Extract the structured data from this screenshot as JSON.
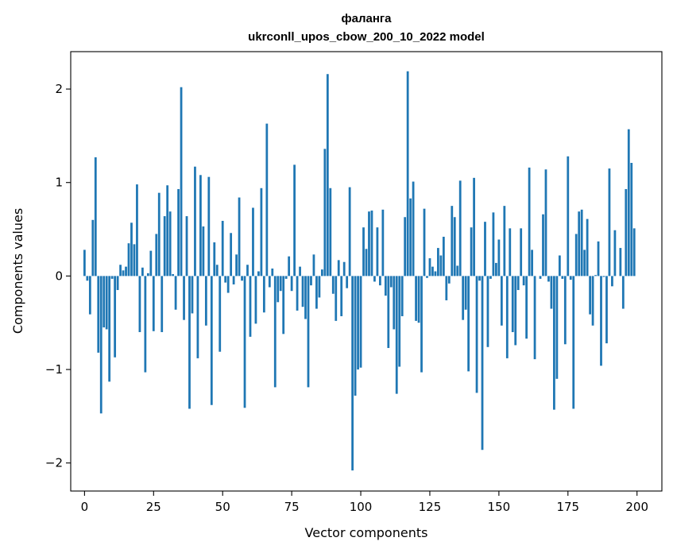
{
  "chart_data": {
    "type": "bar",
    "title": "фаланга",
    "subtitle": "ukrconll_upos_cbow_200_10_2022 model",
    "xlabel": "Vector components",
    "ylabel": "Components values",
    "xlim": [
      -5,
      209
    ],
    "ylim": [
      -2.3,
      2.4
    ],
    "xticks": [
      0,
      25,
      50,
      75,
      100,
      125,
      150,
      175,
      200
    ],
    "yticks": [
      -2,
      -1,
      0,
      1,
      2
    ],
    "xtick_labels": [
      "0",
      "25",
      "50",
      "75",
      "100",
      "125",
      "150",
      "175",
      "200"
    ],
    "ytick_labels": [
      "−2",
      "−1",
      "0",
      "1",
      "2"
    ],
    "grid": false,
    "bar_color": "#1f77b4",
    "x": [
      0,
      1,
      2,
      3,
      4,
      5,
      6,
      7,
      8,
      9,
      10,
      11,
      12,
      13,
      14,
      15,
      16,
      17,
      18,
      19,
      20,
      21,
      22,
      23,
      24,
      25,
      26,
      27,
      28,
      29,
      30,
      31,
      32,
      33,
      34,
      35,
      36,
      37,
      38,
      39,
      40,
      41,
      42,
      43,
      44,
      45,
      46,
      47,
      48,
      49,
      50,
      51,
      52,
      53,
      54,
      55,
      56,
      57,
      58,
      59,
      60,
      61,
      62,
      63,
      64,
      65,
      66,
      67,
      68,
      69,
      70,
      71,
      72,
      73,
      74,
      75,
      76,
      77,
      78,
      79,
      80,
      81,
      82,
      83,
      84,
      85,
      86,
      87,
      88,
      89,
      90,
      91,
      92,
      93,
      94,
      95,
      96,
      97,
      98,
      99,
      100,
      101,
      102,
      103,
      104,
      105,
      106,
      107,
      108,
      109,
      110,
      111,
      112,
      113,
      114,
      115,
      116,
      117,
      118,
      119,
      120,
      121,
      122,
      123,
      124,
      125,
      126,
      127,
      128,
      129,
      130,
      131,
      132,
      133,
      134,
      135,
      136,
      137,
      138,
      139,
      140,
      141,
      142,
      143,
      144,
      145,
      146,
      147,
      148,
      149,
      150,
      151,
      152,
      153,
      154,
      155,
      156,
      157,
      158,
      159,
      160,
      161,
      162,
      163,
      164,
      165,
      166,
      167,
      168,
      169,
      170,
      171,
      172,
      173,
      174,
      175,
      176,
      177,
      178,
      179,
      180,
      181,
      182,
      183,
      184,
      185,
      186,
      187,
      188,
      189,
      190,
      191,
      192,
      193,
      194,
      195,
      196,
      197,
      198,
      199
    ],
    "values": [
      0.28,
      -0.05,
      -0.41,
      0.6,
      1.27,
      -0.82,
      -1.47,
      -0.55,
      -0.57,
      -1.13,
      -0.03,
      -0.87,
      -0.15,
      0.12,
      0.06,
      0.1,
      0.35,
      0.57,
      0.34,
      0.98,
      -0.6,
      0.09,
      -1.03,
      0.03,
      0.27,
      -0.59,
      0.45,
      0.89,
      -0.6,
      0.64,
      0.97,
      0.69,
      0.02,
      -0.36,
      0.93,
      2.02,
      -0.47,
      0.64,
      -1.42,
      -0.4,
      1.17,
      -0.88,
      1.08,
      0.53,
      -0.53,
      1.06,
      -1.38,
      0.36,
      0.12,
      -0.81,
      0.59,
      -0.07,
      -0.18,
      0.46,
      -0.09,
      0.23,
      0.84,
      -0.05,
      -1.41,
      0.12,
      -0.65,
      0.73,
      -0.51,
      0.05,
      0.94,
      -0.39,
      1.63,
      -0.12,
      0.08,
      -1.19,
      -0.28,
      -0.16,
      -0.62,
      -0.03,
      0.21,
      -0.16,
      1.19,
      -0.37,
      0.1,
      -0.33,
      -0.46,
      -1.19,
      -0.1,
      0.23,
      -0.35,
      -0.23,
      0.07,
      1.36,
      2.16,
      0.94,
      -0.19,
      -0.48,
      0.17,
      -0.43,
      0.15,
      -0.13,
      0.95,
      -2.08,
      -1.28,
      -1.0,
      -0.98,
      0.52,
      0.29,
      0.69,
      0.7,
      -0.06,
      0.52,
      -0.1,
      0.71,
      -0.21,
      -0.77,
      -0.12,
      -0.57,
      -1.26,
      -0.97,
      -0.43,
      0.63,
      2.19,
      0.83,
      1.01,
      -0.48,
      -0.5,
      -1.03,
      0.72,
      -0.02,
      0.19,
      0.1,
      0.05,
      0.3,
      0.22,
      0.42,
      -0.26,
      -0.08,
      0.75,
      0.63,
      0.11,
      1.02,
      -0.47,
      -0.36,
      -1.02,
      0.52,
      1.05,
      -1.25,
      -0.05,
      -1.86,
      0.58,
      -0.76,
      -0.03,
      0.68,
      0.14,
      0.39,
      -0.53,
      0.75,
      -0.88,
      0.51,
      -0.6,
      -0.74,
      -0.15,
      0.51,
      -0.1,
      -0.67,
      1.16,
      0.28,
      -0.89,
      0.0,
      -0.03,
      0.66,
      1.14,
      -0.06,
      -0.35,
      -1.43,
      -1.1,
      0.22,
      -0.03,
      -0.73,
      1.28,
      -0.04,
      -1.42,
      0.45,
      0.69,
      0.71,
      0.28,
      0.61,
      -0.41,
      -0.53,
      0.01,
      0.37,
      -0.96,
      -0.01,
      -0.72,
      1.15,
      -0.11,
      0.49,
      0.0,
      0.3,
      -0.35,
      0.93,
      1.57,
      1.21,
      0.51
    ]
  }
}
